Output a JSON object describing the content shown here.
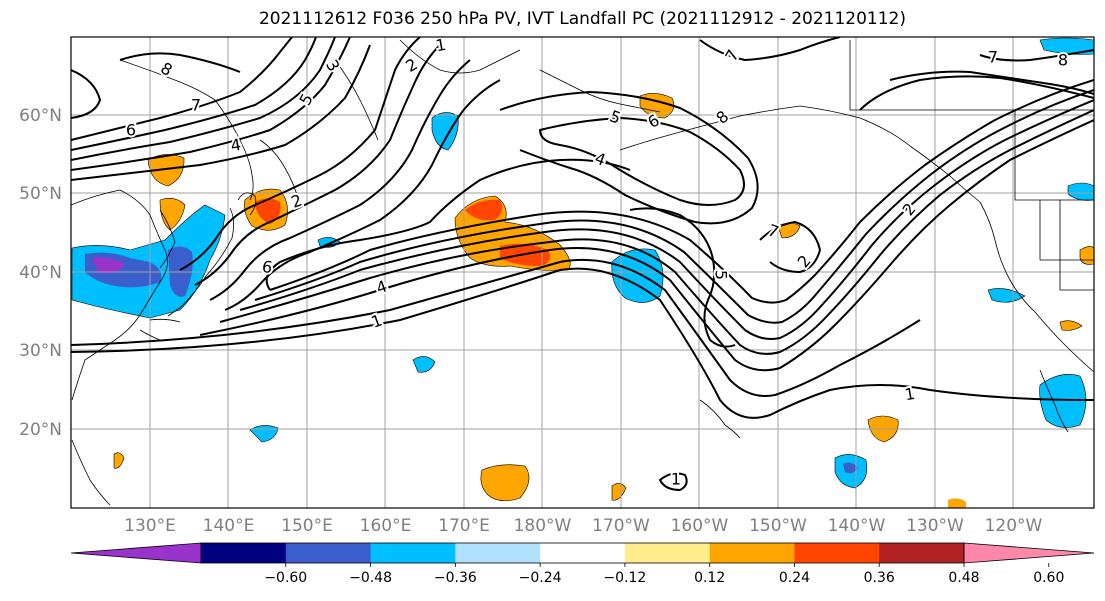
{
  "title": "2021112612 F036 250 hPa PV, IVT Landfall PC (2021112912 - 2021120112)",
  "lat_labels": [
    "60°N",
    "50°N",
    "40°N",
    "30°N",
    "20°N"
  ],
  "lon_labels": [
    "130°E",
    "140°E",
    "150°E",
    "160°E",
    "170°E",
    "180°W",
    "170°W",
    "160°W",
    "150°W",
    "140°W",
    "130°W",
    "120°W"
  ],
  "colorbar": {
    "colors": [
      "#9933cc",
      "#000080",
      "#3a5fcd",
      "#00bfff",
      "#b0e2ff",
      "#ffffff",
      "#ffec8b",
      "#ffa500",
      "#ff4500",
      "#b22222",
      "#ff88aa"
    ],
    "tick_labels": [
      "−0.60",
      "−0.48",
      "−0.36",
      "−0.24",
      "−0.12",
      "0.12",
      "0.24",
      "0.36",
      "0.48",
      "0.60"
    ]
  },
  "contour_labels": [
    {
      "text": "8",
      "rot": 30
    },
    {
      "text": "7",
      "rot": 0
    },
    {
      "text": "6",
      "rot": 0
    },
    {
      "text": "4",
      "rot": -10
    },
    {
      "text": "3",
      "rot": 60
    },
    {
      "text": "5",
      "rot": -60
    },
    {
      "text": "2",
      "rot": -20
    },
    {
      "text": "1",
      "rot": -10
    },
    {
      "text": "2",
      "rot": -30
    },
    {
      "text": "6",
      "rot": 10
    },
    {
      "text": "4",
      "rot": -20
    },
    {
      "text": "1",
      "rot": -20
    },
    {
      "text": "5",
      "rot": 20
    },
    {
      "text": "6",
      "rot": -30
    },
    {
      "text": "4",
      "rot": 20
    },
    {
      "text": "8",
      "rot": -40
    },
    {
      "text": "7",
      "rot": 20
    },
    {
      "text": "8",
      "rot": 0
    },
    {
      "text": "7",
      "rot": 0
    },
    {
      "text": "7",
      "rot": -60
    },
    {
      "text": "5",
      "rot": 90
    },
    {
      "text": "2",
      "rot": -50
    },
    {
      "text": "2",
      "rot": -50
    },
    {
      "text": "1",
      "rot": -10
    },
    {
      "text": "1",
      "rot": 0
    }
  ]
}
